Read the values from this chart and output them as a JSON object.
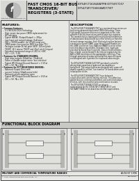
{
  "background_color": "#e8e8e4",
  "border_color": "#555555",
  "header_bg": "#ffffff",
  "title_line1": "FAST CMOS 16-BIT BUS",
  "title_line2": "TRANSCEIVER/",
  "title_line3": "REGISTERS (3-STATE)",
  "part_numbers_line1": "IDT54FCT162646ATPFB IDT74FCT157",
  "part_numbers_line2": "IDT54/74FCT166646AT/CT/ET",
  "features_title": "FEATURES:",
  "features_lines": [
    "Common features:",
    "  0.5 MICRON CMOS Technology",
    "  High speed, low power CMOS replacement for",
    "  IBT functions",
    "  Typical tSKEW: (Output/Output) = 250ps",
    "  Low Input and output leakage (1uA max.)",
    "  ESD > 2000V parallel, 4x 12.5kV serial pins",
    "  CMOS power consumption (80% less than TTL)",
    "  Packages include 56 mil pitch SSOP, 100 mil pitch",
    "  TSSOP, 18.1 micron TSSOP and 25mil pitch Cerquad",
    "  Extended commercial range of -40C to +85C",
    "  VCC = 4.5 - 5.5V",
    "Features for STANDARD DRIVERS:",
    "  High drive outputs (64mA Ion, 32mA Ioff)",
    "  Power of disable output sense 'bus retention'",
    "  Typical tPD (Output/Ground Bounce) = 1.5V at",
    "  VCC = 5V, TA = 25C",
    "Features for FCT REGISTERED DRIVERS:",
    "  Balanced Output Drive with",
    "  current limiting (24mA source/sink)",
    "  Reduced system switching noise",
    "  Typical tPD (Output/Ground Bounce) = 0.5V at",
    "  VCC = 5V, TA = 25C"
  ],
  "description_title": "DESCRIPTION",
  "description_lines": [
    "The IDT54/74FCT162646AT/CT/ET are registered transceivers are",
    "built using advanced dual metal CMOS technology. These",
    "high speed, low power devices are organized as two inde-",
    "pendent 8-bit bus transceivers with tri-state bus registers.",
    "The common bus is organized for multiplexed transmission",
    "of data between A-bus and B bus either directly or from the",
    "internal storage registers. Each 8-bit octal register features",
    "synchronous control (SAB), over-riding Output Enable con-",
    "trol (OEB) and Select lines (SAB and SABB) to select either",
    "real-time data or stored data. Separate clock inputs are",
    "provided for A and B port registers. Data in the A to B direc-",
    "tion, or both, can be stored in the internal registers by the",
    "A2B or B2B transitions at the appropriate clocklines. Flow-",
    "through operation of output pins amplifies input 40 inputs",
    "and designed with hysteresis for improved noise margin.",
    " ",
    "The IDT54/74FCT162646 54/CT/ET are ideally suited for",
    "driving high-capacitance loads and low-impedance",
    "backplanes. The output buffers are designed with power-off",
    "disable capability so that 'live insertion' of boards when used",
    "in backplane drives.",
    " ",
    "The IDT54/74FCT162646AT/CT/ET have balanced",
    "output drive with current limiting resistors. This offers low",
    "ground bounce, minimal undershoot, and controlled output",
    "at times, with less need for series termination resistors.",
    "The IDT54/74FCT162646 FCT/ET are plug-in",
    "replacements for the IDT54/74FCT 86647 AT/CT and",
    "54/74ABTT 8646 for on-board bus interface applications."
  ],
  "block_diagram_title": "FUNCTIONAL BLOCK DIAGRAM",
  "footer_text1": "MILITARY AND COMMERCIAL TEMPERATURE RANGES",
  "footer_text2": "AUGUST 1996",
  "footer_logo": "1996 Integrated Device Technology, Inc.",
  "footer_page": "1",
  "separator_color": "#444444",
  "text_color": "#111111",
  "title_color": "#000000",
  "logo_company": "Integrated Device Technology, Inc."
}
